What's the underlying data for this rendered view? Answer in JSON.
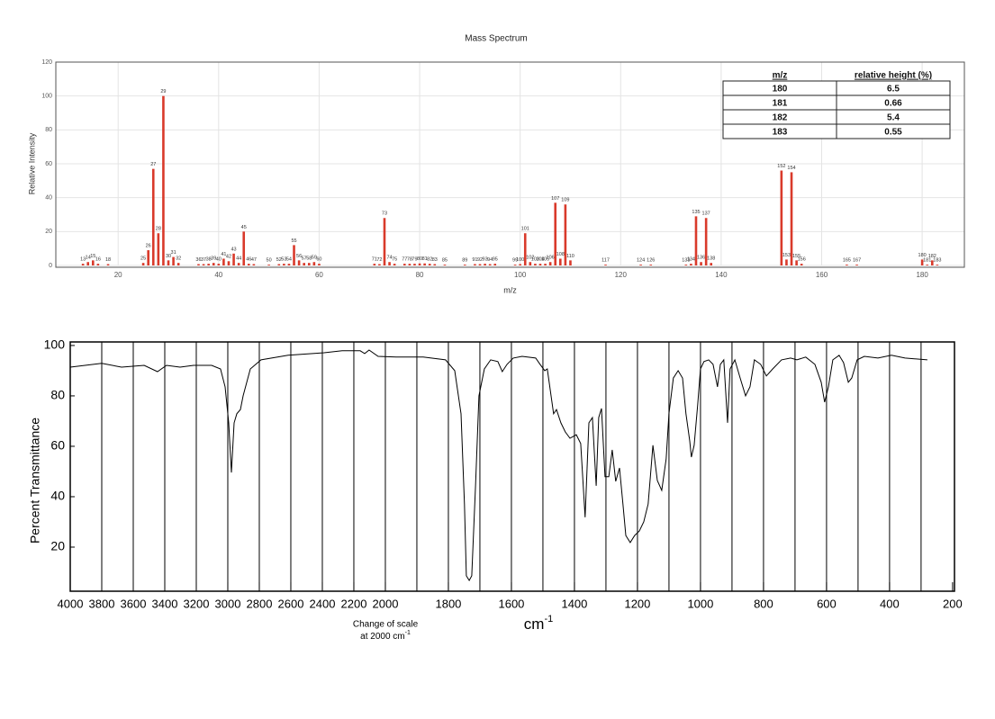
{
  "chart_data": [
    {
      "type": "bar",
      "title": "Mass Spectrum",
      "xlabel": "m/z",
      "ylabel": "Relative Intensity",
      "color": "#d93a2b",
      "xlim": [
        7.6,
        188.4
      ],
      "ylim": [
        0,
        120
      ],
      "xticks": [
        20,
        40,
        60,
        80,
        100,
        120,
        140,
        160,
        180
      ],
      "yticks": [
        0,
        20,
        40,
        60,
        80,
        100,
        120
      ],
      "grid": true,
      "x": [
        13,
        14,
        15,
        16,
        18,
        25,
        26,
        27,
        28,
        29,
        30,
        31,
        32,
        36,
        37,
        38,
        39,
        40,
        41,
        42,
        43,
        44,
        45,
        46,
        47,
        50,
        52,
        53,
        54,
        55,
        56,
        57,
        58,
        59,
        60,
        71,
        72,
        73,
        74,
        75,
        77,
        78,
        79,
        80,
        81,
        82,
        83,
        85,
        89,
        91,
        92,
        93,
        94,
        95,
        99,
        100,
        101,
        102,
        103,
        104,
        105,
        106,
        107,
        108,
        109,
        110,
        117,
        124,
        126,
        133,
        134,
        135,
        136,
        137,
        138,
        152,
        153,
        154,
        155,
        156,
        165,
        167,
        180,
        181,
        182,
        183
      ],
      "values": [
        1,
        2,
        3,
        1,
        0.8,
        1.5,
        9,
        57,
        19,
        100,
        3,
        5,
        1.5,
        0.8,
        0.8,
        1,
        1.5,
        1,
        4,
        2.5,
        7,
        1.5,
        20,
        1,
        0.8,
        0.5,
        0.8,
        1,
        1,
        12,
        3,
        1.5,
        1.5,
        2,
        1,
        1,
        0.8,
        28,
        2,
        1,
        1,
        1,
        1,
        1.2,
        1.2,
        1,
        0.8,
        0.5,
        0.5,
        0.8,
        0.8,
        1,
        0.8,
        1,
        0.5,
        0.8,
        19,
        2,
        1,
        1,
        1,
        2,
        37,
        4,
        36,
        3,
        0.5,
        0.5,
        0.5,
        0.5,
        1,
        29,
        2,
        28,
        1.5,
        56,
        3.5,
        55,
        3,
        1,
        0.5,
        0.5,
        3.5,
        0.5,
        3,
        0.5
      ],
      "table": {
        "columns": [
          "m/z",
          "relative height (%)"
        ],
        "rows": [
          [
            180,
            6.5
          ],
          [
            181,
            0.66
          ],
          [
            182,
            5.4
          ],
          [
            183,
            0.55
          ]
        ]
      }
    },
    {
      "type": "line",
      "ylabel": "Percent Transmittance",
      "xlabel": "cm",
      "xlabel_superscript": "-1",
      "annotation": [
        "Change of scale",
        "at 2000 cm"
      ],
      "annotation_superscript": "-1",
      "color": "#000000",
      "xlim": [
        4000,
        194
      ],
      "ylim": [
        2.5,
        101.4
      ],
      "x_scale_break": 2000,
      "xticks": [
        4000,
        3800,
        3600,
        3400,
        3200,
        3000,
        2800,
        2600,
        2400,
        2200,
        2000,
        1800,
        1600,
        1400,
        1200,
        1000,
        800,
        600,
        400,
        200
      ],
      "yticks": [
        20,
        40,
        60,
        80,
        100
      ],
      "xgrid": [
        3800,
        3600,
        3400,
        3200,
        3000,
        2800,
        2600,
        2400,
        2200,
        2000,
        1900,
        1800,
        1700,
        1600,
        1500,
        1400,
        1300,
        1200,
        1100,
        1000,
        900,
        800,
        700,
        600,
        500,
        400,
        300
      ],
      "x": [
        4000,
        3800,
        3674,
        3531,
        3446,
        3389,
        3303,
        3217,
        3103,
        3046,
        3017,
        2994,
        2977,
        2960,
        2943,
        2920,
        2903,
        2857,
        2789,
        2617,
        2389,
        2274,
        2160,
        2131,
        2103,
        2046,
        1966,
        1880,
        1809,
        1780,
        1760,
        1749,
        1743,
        1734,
        1726,
        1714,
        1703,
        1686,
        1666,
        1643,
        1629,
        1614,
        1594,
        1566,
        1523,
        1509,
        1494,
        1486,
        1474,
        1466,
        1457,
        1443,
        1429,
        1414,
        1394,
        1380,
        1366,
        1354,
        1343,
        1331,
        1323,
        1314,
        1303,
        1291,
        1280,
        1269,
        1257,
        1246,
        1237,
        1223,
        1209,
        1194,
        1180,
        1166,
        1151,
        1137,
        1123,
        1109,
        1100,
        1086,
        1071,
        1057,
        1046,
        1034,
        1029,
        1020,
        1009,
        1000,
        989,
        974,
        960,
        946,
        937,
        926,
        914,
        906,
        891,
        874,
        857,
        843,
        829,
        809,
        791,
        771,
        743,
        714,
        694,
        666,
        637,
        617,
        606,
        594,
        580,
        560,
        546,
        531,
        520,
        503,
        480,
        437,
        394,
        351,
        280
      ],
      "values": [
        91.4,
        92.9,
        91.4,
        92.1,
        89.6,
        92.1,
        91.4,
        92.1,
        92.1,
        90.7,
        83.6,
        69.3,
        49.6,
        69.3,
        72.9,
        74.6,
        80,
        90.7,
        94.3,
        96.1,
        97.1,
        97.9,
        97.9,
        96.8,
        98.2,
        95.7,
        95.4,
        95.4,
        94.3,
        90,
        72.9,
        37.1,
        8.6,
        6.8,
        8.6,
        44.3,
        80,
        90.7,
        94.3,
        93.6,
        89.6,
        92.5,
        95,
        95.7,
        95,
        92.5,
        90,
        90.7,
        80,
        72.9,
        74.6,
        69.3,
        65.7,
        63.2,
        64.6,
        61.1,
        31.8,
        69.3,
        71.4,
        44.3,
        71.4,
        75,
        47.9,
        47.9,
        58.6,
        46.1,
        51.4,
        37.1,
        24.6,
        21.8,
        24.6,
        26.4,
        30,
        37.1,
        60.4,
        46.4,
        42.5,
        55,
        72.9,
        87.1,
        90,
        87.1,
        72.9,
        62.1,
        55.7,
        60.4,
        76.4,
        90.7,
        93.6,
        94.3,
        92.5,
        83.6,
        92.5,
        94.3,
        69.3,
        90.7,
        94.3,
        87.1,
        80,
        83.6,
        94.3,
        92.5,
        87.9,
        90.7,
        94.3,
        95,
        94.3,
        95.4,
        92.5,
        85.4,
        77.5,
        83.6,
        94.3,
        96.1,
        93.2,
        85.4,
        87.1,
        94.3,
        95.7,
        95,
        96.1,
        95,
        94.3
      ]
    }
  ]
}
